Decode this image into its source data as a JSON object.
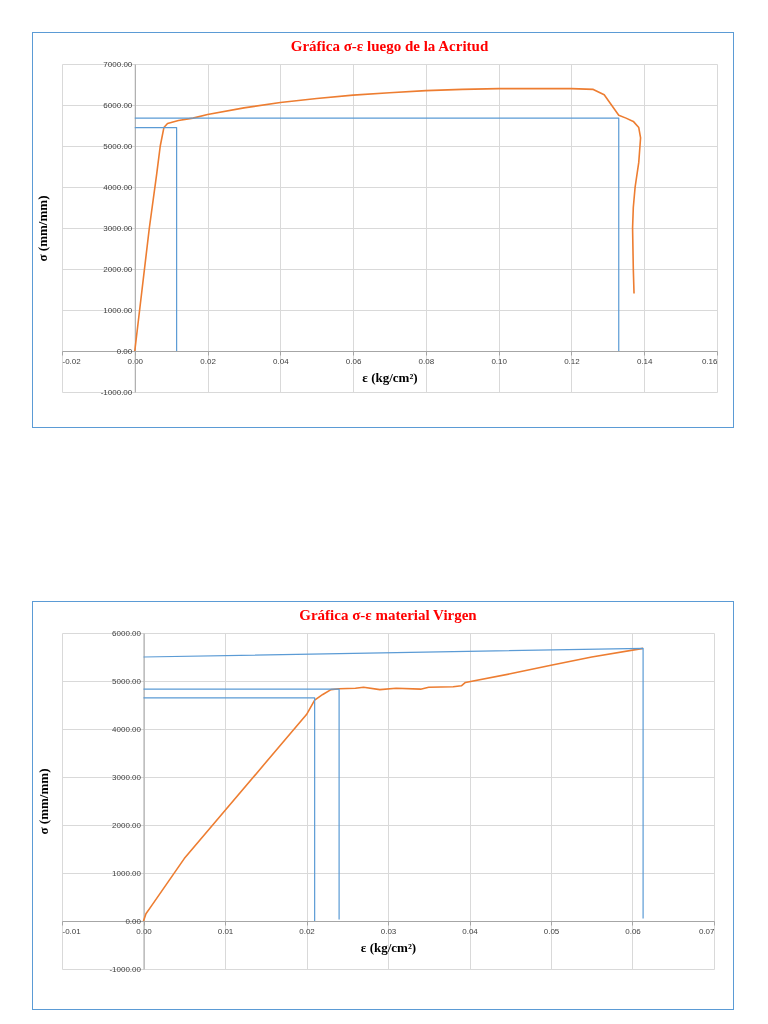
{
  "chart_data": [
    {
      "type": "line",
      "title": "Gráfica σ-ε luego de la Acritud",
      "xlabel": "ε (kg/cm²)",
      "ylabel": "σ (mm/mm)",
      "xlim": [
        -0.02,
        0.16
      ],
      "ylim": [
        -1000,
        7000
      ],
      "xticks": [
        {
          "value": -0.02,
          "label": "-0.02"
        },
        {
          "value": 0,
          "label": "0.00"
        },
        {
          "value": 0.02,
          "label": "0.02"
        },
        {
          "value": 0.04,
          "label": "0.04"
        },
        {
          "value": 0.06,
          "label": "0.06"
        },
        {
          "value": 0.08,
          "label": "0.08"
        },
        {
          "value": 0.1,
          "label": "0.10"
        },
        {
          "value": 0.12,
          "label": "0.12"
        },
        {
          "value": 0.14,
          "label": "0.14"
        },
        {
          "value": 0.16,
          "label": "0.16"
        }
      ],
      "yticks": [
        {
          "value": -1000,
          "label": "-1000.00"
        },
        {
          "value": 0,
          "label": "0.00"
        },
        {
          "value": 1000,
          "label": "1000.00"
        },
        {
          "value": 2000,
          "label": "2000.00"
        },
        {
          "value": 3000,
          "label": "3000.00"
        },
        {
          "value": 4000,
          "label": "4000.00"
        },
        {
          "value": 5000,
          "label": "5000.00"
        },
        {
          "value": 6000,
          "label": "6000.00"
        },
        {
          "value": 7000,
          "label": "7000.00"
        }
      ],
      "grid": true,
      "series": [
        {
          "color": "#ed7d31",
          "x": [
            0,
            0.002,
            0.004,
            0.006,
            0.007,
            0.008,
            0.009,
            0.012,
            0.016,
            0.02,
            0.03,
            0.04,
            0.05,
            0.06,
            0.07,
            0.08,
            0.09,
            0.1,
            0.11,
            0.12,
            0.126,
            0.129,
            0.131,
            0.133,
            0.135,
            0.137,
            0.1385,
            0.139,
            0.1385,
            0.1375,
            0.137,
            0.1368,
            0.137,
            0.1372
          ],
          "values": [
            0,
            1500,
            3000,
            4300,
            5000,
            5450,
            5550,
            5620,
            5680,
            5770,
            5930,
            6060,
            6160,
            6240,
            6300,
            6350,
            6380,
            6400,
            6400,
            6400,
            6380,
            6250,
            6000,
            5750,
            5680,
            5600,
            5450,
            5200,
            4600,
            4000,
            3500,
            3000,
            2000,
            1400
          ]
        },
        {
          "color": "#5b9bd5",
          "x": [
            0,
            0.0115,
            0.0115
          ],
          "values": [
            5450,
            5450,
            0
          ]
        },
        {
          "color": "#5b9bd5",
          "x": [
            0,
            0.133,
            0.133
          ],
          "values": [
            5680,
            5680,
            0
          ]
        }
      ]
    },
    {
      "type": "line",
      "title": "Gráfica σ-ε material Virgen",
      "xlabel": "ε (kg/cm²)",
      "ylabel": "σ (mm/mm)",
      "xlim": [
        -0.01,
        0.07
      ],
      "ylim": [
        -1000,
        6000
      ],
      "xticks": [
        {
          "value": -0.01,
          "label": "-0.01"
        },
        {
          "value": 0,
          "label": "0.00"
        },
        {
          "value": 0.01,
          "label": "0.01"
        },
        {
          "value": 0.02,
          "label": "0.02"
        },
        {
          "value": 0.03,
          "label": "0.03"
        },
        {
          "value": 0.04,
          "label": "0.04"
        },
        {
          "value": 0.05,
          "label": "0.05"
        },
        {
          "value": 0.06,
          "label": "0.06"
        },
        {
          "value": 0.07,
          "label": "0.07"
        }
      ],
      "yticks": [
        {
          "value": -1000,
          "label": "-1000.00"
        },
        {
          "value": 0,
          "label": "0.00"
        },
        {
          "value": 1000,
          "label": "1000.00"
        },
        {
          "value": 2000,
          "label": "2000.00"
        },
        {
          "value": 3000,
          "label": "3000.00"
        },
        {
          "value": 4000,
          "label": "4000.00"
        },
        {
          "value": 5000,
          "label": "5000.00"
        },
        {
          "value": 6000,
          "label": "6000.00"
        }
      ],
      "grid": true,
      "series": [
        {
          "color": "#ed7d31",
          "x": [
            0,
            0.0003,
            0.001,
            0.005,
            0.01,
            0.015,
            0.02,
            0.021,
            0.022,
            0.023,
            0.024,
            0.026,
            0.027,
            0.029,
            0.031,
            0.034,
            0.035,
            0.038,
            0.039,
            0.0395,
            0.045,
            0.05,
            0.055,
            0.0613
          ],
          "values": [
            0,
            150,
            320,
            1300,
            2300,
            3300,
            4300,
            4600,
            4720,
            4820,
            4840,
            4850,
            4870,
            4820,
            4850,
            4830,
            4870,
            4880,
            4900,
            4970,
            5150,
            5330,
            5500,
            5680
          ]
        },
        {
          "color": "#5b9bd5",
          "x": [
            0,
            0.021,
            0.021
          ],
          "values": [
            4650,
            4650,
            0
          ]
        },
        {
          "color": "#5b9bd5",
          "x": [
            0,
            0.024,
            0.024
          ],
          "values": [
            4830,
            4830,
            30
          ]
        },
        {
          "color": "#5b9bd5",
          "x": [
            0,
            0.0613,
            0.0613
          ],
          "values": [
            5500,
            5680,
            50
          ]
        }
      ]
    }
  ]
}
